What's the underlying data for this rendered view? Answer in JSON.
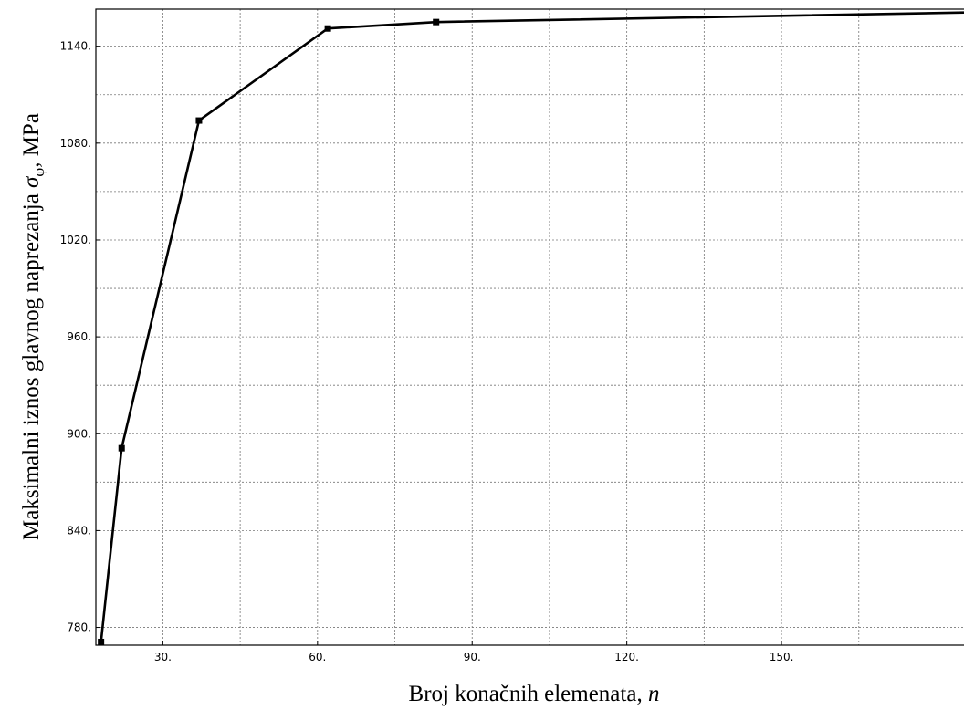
{
  "chart_data": {
    "type": "line",
    "title": "",
    "xlabel": "Broj konačnih elemenata, ",
    "xlabel_var": "n",
    "ylabel": "Maksimalni iznos glavnog naprezanja ",
    "ylabel_sym": "σ",
    "ylabel_sub": "φ",
    "ylabel_unit": ", MPa",
    "xlim": [
      17,
      187
    ],
    "ylim": [
      769,
      1163
    ],
    "x_ticks": [
      30,
      60,
      90,
      120,
      150
    ],
    "x_tick_labels": [
      "30.",
      "60.",
      "90.",
      "120.",
      "150."
    ],
    "x_minor_grid": [
      45,
      75,
      105,
      135,
      165
    ],
    "y_ticks": [
      780,
      840,
      900,
      960,
      1020,
      1080,
      1140
    ],
    "y_tick_labels": [
      "780.",
      "840.",
      "900.",
      "960.",
      "1020.",
      "1080.",
      "1140."
    ],
    "y_minor_grid": [
      810,
      870,
      930,
      990,
      1050,
      1110
    ],
    "grid": true,
    "series": [
      {
        "color": "#000000",
        "marker": "square",
        "x": [
          18,
          22,
          37,
          62,
          83,
          187
        ],
        "y": [
          771,
          891,
          1094,
          1151,
          1155,
          1161
        ]
      }
    ]
  }
}
